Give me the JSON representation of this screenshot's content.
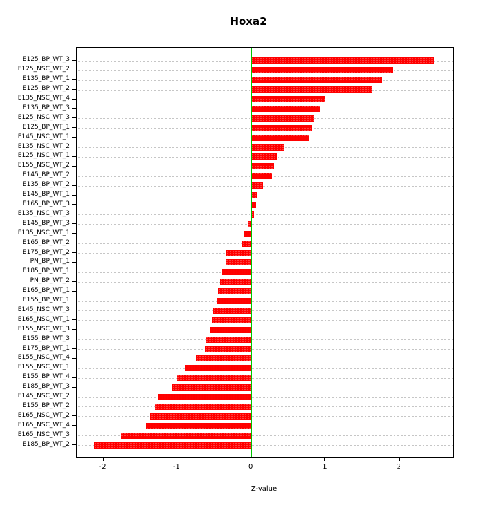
{
  "chart_data": {
    "type": "bar",
    "orientation": "horizontal",
    "title": "Hoxa2",
    "xlabel": "Z-value",
    "xlim": [
      -2.36,
      2.72
    ],
    "xticks": [
      -2,
      -1,
      0,
      1,
      2
    ],
    "bar_color": "#ff0000",
    "zero_line_color": "#00c400",
    "grid": "dotted-row-lines",
    "legend": "none",
    "categories": [
      "E125_BP_WT_3",
      "E125_NSC_WT_2",
      "E135_BP_WT_1",
      "E125_BP_WT_2",
      "E135_NSC_WT_4",
      "E135_BP_WT_3",
      "E125_NSC_WT_3",
      "E125_BP_WT_1",
      "E145_NSC_WT_1",
      "E135_NSC_WT_2",
      "E125_NSC_WT_1",
      "E155_NSC_WT_2",
      "E145_BP_WT_2",
      "E135_BP_WT_2",
      "E145_BP_WT_1",
      "E165_BP_WT_3",
      "E135_NSC_WT_3",
      "E145_BP_WT_3",
      "E135_NSC_WT_1",
      "E165_BP_WT_2",
      "E175_BP_WT_2",
      "PN_BP_WT_1",
      "E185_BP_WT_1",
      "PN_BP_WT_2",
      "E165_BP_WT_1",
      "E155_BP_WT_1",
      "E145_NSC_WT_3",
      "E165_NSC_WT_1",
      "E155_NSC_WT_3",
      "E155_BP_WT_3",
      "E175_BP_WT_1",
      "E155_NSC_WT_4",
      "E155_NSC_WT_1",
      "E155_BP_WT_4",
      "E185_BP_WT_3",
      "E145_NSC_WT_2",
      "E155_BP_WT_2",
      "E165_NSC_WT_2",
      "E165_NSC_WT_4",
      "E165_NSC_WT_3",
      "E185_BP_WT_2"
    ],
    "values": [
      2.47,
      1.92,
      1.77,
      1.63,
      1.0,
      0.93,
      0.85,
      0.82,
      0.78,
      0.45,
      0.35,
      0.31,
      0.28,
      0.16,
      0.08,
      0.06,
      0.04,
      -0.05,
      -0.1,
      -0.12,
      -0.34,
      -0.35,
      -0.4,
      -0.42,
      -0.45,
      -0.47,
      -0.51,
      -0.53,
      -0.56,
      -0.62,
      -0.63,
      -0.75,
      -0.9,
      -1.01,
      -1.07,
      -1.26,
      -1.31,
      -1.36,
      -1.42,
      -1.76,
      -2.13
    ]
  }
}
